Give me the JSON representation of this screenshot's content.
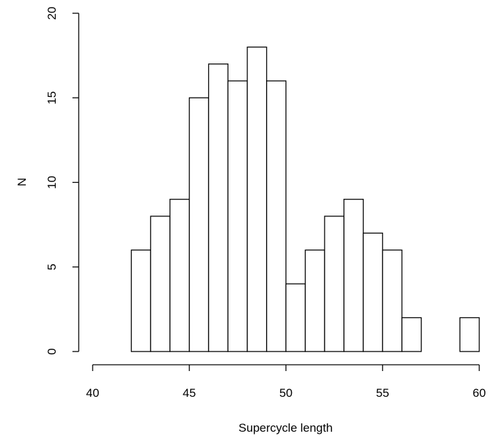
{
  "chart_data": {
    "type": "bar",
    "title": "",
    "xlabel": "Supercycle length",
    "ylabel": "N",
    "xlim": [
      40,
      60
    ],
    "ylim": [
      0,
      20
    ],
    "x_ticks": [
      "40",
      "45",
      "50",
      "55",
      "60"
    ],
    "y_ticks": [
      "0",
      "5",
      "10",
      "15",
      "20"
    ],
    "bin_width": 1,
    "bins": [
      {
        "start": 42,
        "end": 43,
        "count": 6
      },
      {
        "start": 43,
        "end": 44,
        "count": 8
      },
      {
        "start": 44,
        "end": 45,
        "count": 9
      },
      {
        "start": 45,
        "end": 46,
        "count": 15
      },
      {
        "start": 46,
        "end": 47,
        "count": 17
      },
      {
        "start": 47,
        "end": 48,
        "count": 16
      },
      {
        "start": 48,
        "end": 49,
        "count": 18
      },
      {
        "start": 49,
        "end": 50,
        "count": 16
      },
      {
        "start": 50,
        "end": 51,
        "count": 4
      },
      {
        "start": 51,
        "end": 52,
        "count": 6
      },
      {
        "start": 52,
        "end": 53,
        "count": 8
      },
      {
        "start": 53,
        "end": 54,
        "count": 9
      },
      {
        "start": 54,
        "end": 55,
        "count": 7
      },
      {
        "start": 55,
        "end": 56,
        "count": 6
      },
      {
        "start": 56,
        "end": 57,
        "count": 2
      },
      {
        "start": 57,
        "end": 58,
        "count": 0
      },
      {
        "start": 58,
        "end": 59,
        "count": 0
      },
      {
        "start": 59,
        "end": 60,
        "count": 2
      }
    ],
    "grid": false,
    "bar_fill": "#ffffff",
    "bar_stroke": "#000000"
  }
}
